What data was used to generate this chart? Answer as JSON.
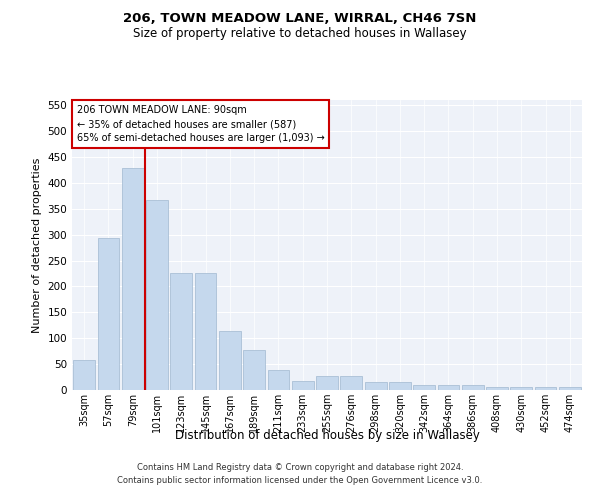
{
  "title1": "206, TOWN MEADOW LANE, WIRRAL, CH46 7SN",
  "title2": "Size of property relative to detached houses in Wallasey",
  "xlabel": "Distribution of detached houses by size in Wallasey",
  "ylabel": "Number of detached properties",
  "footer1": "Contains HM Land Registry data © Crown copyright and database right 2024.",
  "footer2": "Contains public sector information licensed under the Open Government Licence v3.0.",
  "categories": [
    "35sqm",
    "57sqm",
    "79sqm",
    "101sqm",
    "123sqm",
    "145sqm",
    "167sqm",
    "189sqm",
    "211sqm",
    "233sqm",
    "255sqm",
    "276sqm",
    "298sqm",
    "320sqm",
    "342sqm",
    "364sqm",
    "386sqm",
    "408sqm",
    "430sqm",
    "452sqm",
    "474sqm"
  ],
  "values": [
    57,
    293,
    428,
    367,
    226,
    226,
    113,
    77,
    39,
    18,
    28,
    28,
    16,
    16,
    10,
    10,
    10,
    6,
    6,
    6,
    5
  ],
  "bar_color": "#c5d8ed",
  "bar_edge_color": "#a0b8d0",
  "vline_x": 2.5,
  "vline_color": "#cc0000",
  "annotation_title": "206 TOWN MEADOW LANE: 90sqm",
  "annotation_line1": "← 35% of detached houses are smaller (587)",
  "annotation_line2": "65% of semi-detached houses are larger (1,093) →",
  "annotation_box_color": "#ffffff",
  "annotation_border_color": "#cc0000",
  "ylim": [
    0,
    560
  ],
  "yticks": [
    0,
    50,
    100,
    150,
    200,
    250,
    300,
    350,
    400,
    450,
    500,
    550
  ],
  "background_color": "#eef2f9",
  "figure_width": 6.0,
  "figure_height": 5.0,
  "dpi": 100
}
